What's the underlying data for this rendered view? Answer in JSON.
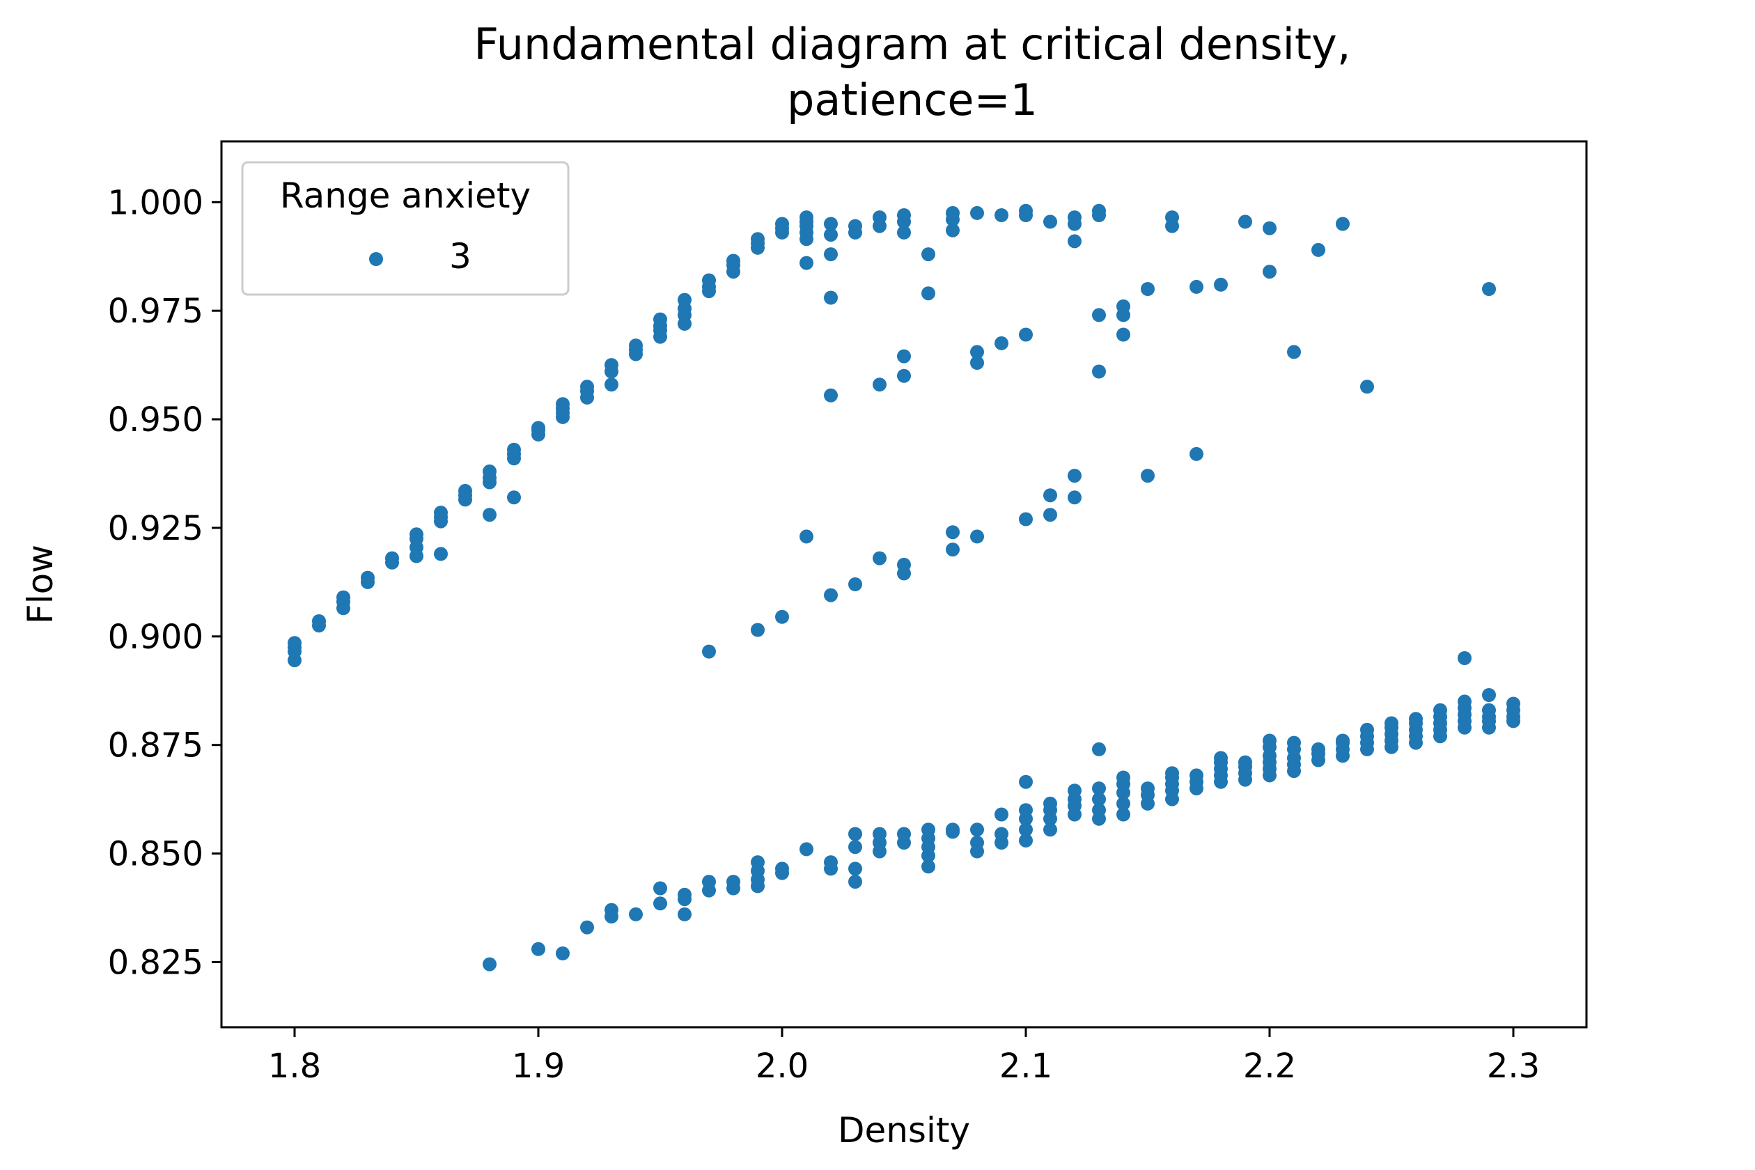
{
  "chart_data": {
    "type": "scatter",
    "title_line1": "Fundamental diagram at critical density,",
    "title_line2": "patience=1",
    "xlabel": "Density",
    "ylabel": "Flow",
    "xlim": [
      1.77,
      2.33
    ],
    "ylim": [
      0.81,
      1.014
    ],
    "xticks": [
      "1.8",
      "1.9",
      "2.0",
      "2.1",
      "2.2",
      "2.3"
    ],
    "yticks": [
      "0.825",
      "0.850",
      "0.875",
      "0.900",
      "0.925",
      "0.950",
      "0.975",
      "1.000"
    ],
    "grid": false,
    "legend": {
      "title": "Range anxiety",
      "placement": "top-left"
    },
    "color": "#1f77b4",
    "series": [
      {
        "name": "3",
        "points": [
          [
            1.8,
            0.8945
          ],
          [
            1.8,
            0.8965
          ],
          [
            1.8,
            0.8975
          ],
          [
            1.8,
            0.8985
          ],
          [
            1.81,
            0.9025
          ],
          [
            1.81,
            0.9035
          ],
          [
            1.82,
            0.9065
          ],
          [
            1.82,
            0.908
          ],
          [
            1.82,
            0.909
          ],
          [
            1.83,
            0.9125
          ],
          [
            1.83,
            0.9135
          ],
          [
            1.84,
            0.917
          ],
          [
            1.84,
            0.918
          ],
          [
            1.85,
            0.9185
          ],
          [
            1.85,
            0.9205
          ],
          [
            1.85,
            0.9225
          ],
          [
            1.85,
            0.9235
          ],
          [
            1.86,
            0.919
          ],
          [
            1.86,
            0.9265
          ],
          [
            1.86,
            0.9275
          ],
          [
            1.86,
            0.9285
          ],
          [
            1.87,
            0.9315
          ],
          [
            1.87,
            0.9325
          ],
          [
            1.87,
            0.9335
          ],
          [
            1.88,
            0.928
          ],
          [
            1.88,
            0.9355
          ],
          [
            1.88,
            0.9365
          ],
          [
            1.88,
            0.938
          ],
          [
            1.89,
            0.932
          ],
          [
            1.89,
            0.941
          ],
          [
            1.89,
            0.942
          ],
          [
            1.89,
            0.943
          ],
          [
            1.9,
            0.9465
          ],
          [
            1.9,
            0.9475
          ],
          [
            1.9,
            0.948
          ],
          [
            1.91,
            0.9505
          ],
          [
            1.91,
            0.9515
          ],
          [
            1.91,
            0.9525
          ],
          [
            1.91,
            0.9535
          ],
          [
            1.92,
            0.955
          ],
          [
            1.92,
            0.9565
          ],
          [
            1.92,
            0.9575
          ],
          [
            1.93,
            0.958
          ],
          [
            1.93,
            0.961
          ],
          [
            1.93,
            0.9625
          ],
          [
            1.94,
            0.965
          ],
          [
            1.94,
            0.966
          ],
          [
            1.94,
            0.967
          ],
          [
            1.95,
            0.969
          ],
          [
            1.95,
            0.9705
          ],
          [
            1.95,
            0.9715
          ],
          [
            1.95,
            0.973
          ],
          [
            1.96,
            0.972
          ],
          [
            1.96,
            0.974
          ],
          [
            1.96,
            0.9755
          ],
          [
            1.96,
            0.9775
          ],
          [
            1.97,
            0.9795
          ],
          [
            1.97,
            0.9805
          ],
          [
            1.97,
            0.982
          ],
          [
            1.98,
            0.984
          ],
          [
            1.98,
            0.9855
          ],
          [
            1.98,
            0.9865
          ],
          [
            1.99,
            0.9895
          ],
          [
            1.99,
            0.9905
          ],
          [
            1.99,
            0.9915
          ],
          [
            2.0,
            0.993
          ],
          [
            2.0,
            0.994
          ],
          [
            2.0,
            0.995
          ],
          [
            2.01,
            0.986
          ],
          [
            2.01,
            0.9915
          ],
          [
            2.01,
            0.993
          ],
          [
            2.01,
            0.9945
          ],
          [
            2.01,
            0.9955
          ],
          [
            2.01,
            0.9965
          ],
          [
            2.02,
            0.978
          ],
          [
            2.02,
            0.988
          ],
          [
            2.02,
            0.9925
          ],
          [
            2.02,
            0.995
          ],
          [
            2.03,
            0.993
          ],
          [
            2.03,
            0.9945
          ],
          [
            2.04,
            0.9945
          ],
          [
            2.04,
            0.9965
          ],
          [
            2.05,
            0.993
          ],
          [
            2.05,
            0.9955
          ],
          [
            2.05,
            0.997
          ],
          [
            2.06,
            0.979
          ],
          [
            2.06,
            0.988
          ],
          [
            2.07,
            0.9935
          ],
          [
            2.07,
            0.996
          ],
          [
            2.07,
            0.9975
          ],
          [
            2.08,
            0.9975
          ],
          [
            2.09,
            0.997
          ],
          [
            2.1,
            0.997
          ],
          [
            2.1,
            0.998
          ],
          [
            2.11,
            0.9955
          ],
          [
            2.12,
            0.991
          ],
          [
            2.12,
            0.995
          ],
          [
            2.12,
            0.9965
          ],
          [
            2.13,
            0.997
          ],
          [
            2.13,
            0.998
          ],
          [
            2.16,
            0.9945
          ],
          [
            2.16,
            0.9965
          ],
          [
            2.19,
            0.9955
          ],
          [
            2.2,
            0.994
          ],
          [
            2.23,
            0.995
          ],
          [
            2.22,
            0.989
          ],
          [
            2.2,
            0.984
          ],
          [
            2.18,
            0.981
          ],
          [
            2.17,
            0.9805
          ],
          [
            2.15,
            0.98
          ],
          [
            2.14,
            0.974
          ],
          [
            2.14,
            0.976
          ],
          [
            2.13,
            0.974
          ],
          [
            2.14,
            0.9695
          ],
          [
            2.29,
            0.98
          ],
          [
            2.21,
            0.9655
          ],
          [
            2.24,
            0.9575
          ],
          [
            2.02,
            0.9555
          ],
          [
            2.04,
            0.958
          ],
          [
            2.05,
            0.96
          ],
          [
            2.05,
            0.9645
          ],
          [
            2.08,
            0.963
          ],
          [
            2.08,
            0.9655
          ],
          [
            2.09,
            0.9675
          ],
          [
            2.1,
            0.9695
          ],
          [
            2.13,
            0.961
          ],
          [
            1.97,
            0.8965
          ],
          [
            1.99,
            0.9015
          ],
          [
            2.0,
            0.9045
          ],
          [
            2.01,
            0.923
          ],
          [
            2.02,
            0.9095
          ],
          [
            2.03,
            0.912
          ],
          [
            2.04,
            0.918
          ],
          [
            2.05,
            0.9145
          ],
          [
            2.05,
            0.9165
          ],
          [
            2.07,
            0.92
          ],
          [
            2.07,
            0.924
          ],
          [
            2.08,
            0.923
          ],
          [
            2.1,
            0.927
          ],
          [
            2.11,
            0.928
          ],
          [
            2.11,
            0.9325
          ],
          [
            2.12,
            0.932
          ],
          [
            2.12,
            0.937
          ],
          [
            2.15,
            0.937
          ],
          [
            2.17,
            0.942
          ],
          [
            1.88,
            0.8245
          ],
          [
            1.9,
            0.828
          ],
          [
            1.91,
            0.827
          ],
          [
            1.92,
            0.833
          ],
          [
            1.93,
            0.8355
          ],
          [
            1.93,
            0.837
          ],
          [
            1.94,
            0.836
          ],
          [
            1.95,
            0.8385
          ],
          [
            1.95,
            0.842
          ],
          [
            1.96,
            0.836
          ],
          [
            1.96,
            0.8395
          ],
          [
            1.96,
            0.8405
          ],
          [
            1.97,
            0.8415
          ],
          [
            1.97,
            0.8435
          ],
          [
            1.98,
            0.842
          ],
          [
            1.98,
            0.8435
          ],
          [
            1.99,
            0.8425
          ],
          [
            1.99,
            0.844
          ],
          [
            1.99,
            0.846
          ],
          [
            1.99,
            0.848
          ],
          [
            2.0,
            0.8455
          ],
          [
            2.0,
            0.8465
          ],
          [
            2.01,
            0.851
          ],
          [
            2.02,
            0.8465
          ],
          [
            2.02,
            0.848
          ],
          [
            2.03,
            0.8435
          ],
          [
            2.03,
            0.8465
          ],
          [
            2.03,
            0.8515
          ],
          [
            2.03,
            0.8545
          ],
          [
            2.04,
            0.8505
          ],
          [
            2.04,
            0.8525
          ],
          [
            2.04,
            0.8545
          ],
          [
            2.05,
            0.8525
          ],
          [
            2.05,
            0.8545
          ],
          [
            2.06,
            0.847
          ],
          [
            2.06,
            0.8495
          ],
          [
            2.06,
            0.8515
          ],
          [
            2.06,
            0.8535
          ],
          [
            2.06,
            0.8555
          ],
          [
            2.07,
            0.855
          ],
          [
            2.07,
            0.8555
          ],
          [
            2.08,
            0.8505
          ],
          [
            2.08,
            0.8525
          ],
          [
            2.08,
            0.8555
          ],
          [
            2.09,
            0.8525
          ],
          [
            2.09,
            0.8545
          ],
          [
            2.09,
            0.859
          ],
          [
            2.1,
            0.853
          ],
          [
            2.1,
            0.8555
          ],
          [
            2.1,
            0.858
          ],
          [
            2.1,
            0.86
          ],
          [
            2.1,
            0.8665
          ],
          [
            2.11,
            0.8555
          ],
          [
            2.11,
            0.858
          ],
          [
            2.11,
            0.86
          ],
          [
            2.11,
            0.8615
          ],
          [
            2.12,
            0.859
          ],
          [
            2.12,
            0.861
          ],
          [
            2.12,
            0.8625
          ],
          [
            2.12,
            0.8645
          ],
          [
            2.13,
            0.858
          ],
          [
            2.13,
            0.86
          ],
          [
            2.13,
            0.8625
          ],
          [
            2.13,
            0.865
          ],
          [
            2.13,
            0.874
          ],
          [
            2.14,
            0.859
          ],
          [
            2.14,
            0.8615
          ],
          [
            2.14,
            0.864
          ],
          [
            2.14,
            0.866
          ],
          [
            2.14,
            0.8675
          ],
          [
            2.15,
            0.8615
          ],
          [
            2.15,
            0.8635
          ],
          [
            2.15,
            0.865
          ],
          [
            2.16,
            0.8625
          ],
          [
            2.16,
            0.8645
          ],
          [
            2.16,
            0.866
          ],
          [
            2.16,
            0.8675
          ],
          [
            2.16,
            0.8685
          ],
          [
            2.17,
            0.865
          ],
          [
            2.17,
            0.8665
          ],
          [
            2.17,
            0.868
          ],
          [
            2.18,
            0.8665
          ],
          [
            2.18,
            0.868
          ],
          [
            2.18,
            0.8695
          ],
          [
            2.18,
            0.871
          ],
          [
            2.18,
            0.872
          ],
          [
            2.19,
            0.867
          ],
          [
            2.19,
            0.8685
          ],
          [
            2.19,
            0.87
          ],
          [
            2.19,
            0.871
          ],
          [
            2.2,
            0.868
          ],
          [
            2.2,
            0.8695
          ],
          [
            2.2,
            0.871
          ],
          [
            2.2,
            0.8725
          ],
          [
            2.2,
            0.8745
          ],
          [
            2.2,
            0.876
          ],
          [
            2.21,
            0.869
          ],
          [
            2.21,
            0.8705
          ],
          [
            2.21,
            0.872
          ],
          [
            2.21,
            0.874
          ],
          [
            2.21,
            0.8755
          ],
          [
            2.22,
            0.8715
          ],
          [
            2.22,
            0.873
          ],
          [
            2.22,
            0.874
          ],
          [
            2.23,
            0.8725
          ],
          [
            2.23,
            0.874
          ],
          [
            2.23,
            0.8755
          ],
          [
            2.23,
            0.876
          ],
          [
            2.24,
            0.874
          ],
          [
            2.24,
            0.8755
          ],
          [
            2.24,
            0.877
          ],
          [
            2.24,
            0.8785
          ],
          [
            2.25,
            0.8745
          ],
          [
            2.25,
            0.876
          ],
          [
            2.25,
            0.8775
          ],
          [
            2.25,
            0.879
          ],
          [
            2.25,
            0.88
          ],
          [
            2.26,
            0.8755
          ],
          [
            2.26,
            0.877
          ],
          [
            2.26,
            0.8785
          ],
          [
            2.26,
            0.88
          ],
          [
            2.26,
            0.881
          ],
          [
            2.27,
            0.877
          ],
          [
            2.27,
            0.8785
          ],
          [
            2.27,
            0.88
          ],
          [
            2.27,
            0.8815
          ],
          [
            2.27,
            0.883
          ],
          [
            2.28,
            0.879
          ],
          [
            2.28,
            0.8805
          ],
          [
            2.28,
            0.882
          ],
          [
            2.28,
            0.8835
          ],
          [
            2.28,
            0.885
          ],
          [
            2.28,
            0.895
          ],
          [
            2.29,
            0.879
          ],
          [
            2.29,
            0.8805
          ],
          [
            2.29,
            0.8815
          ],
          [
            2.29,
            0.883
          ],
          [
            2.29,
            0.8865
          ],
          [
            2.3,
            0.8805
          ],
          [
            2.3,
            0.8815
          ],
          [
            2.3,
            0.883
          ],
          [
            2.3,
            0.8845
          ]
        ]
      }
    ]
  }
}
